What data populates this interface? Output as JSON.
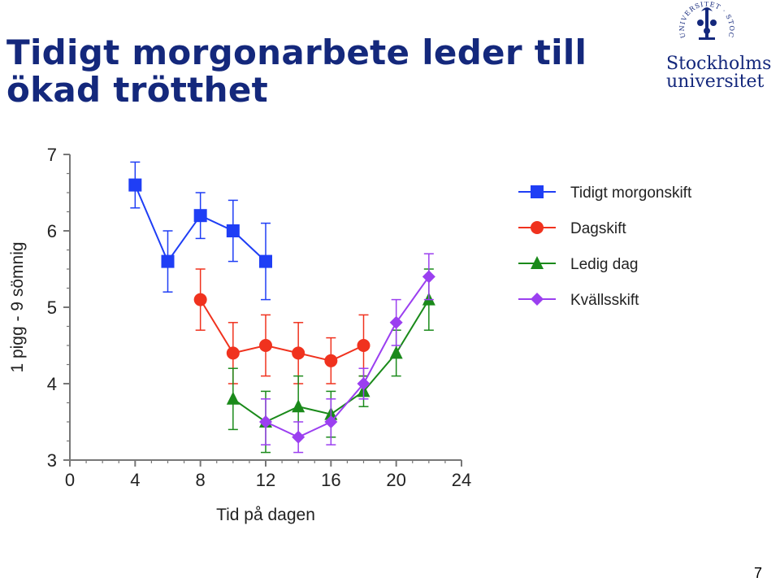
{
  "slide": {
    "title_line1": "Tidigt morgonarbete leder till",
    "title_line2": "ökad trötthet",
    "page_number": "7"
  },
  "logo": {
    "seal_text": "UNIVERSITET · STOCKHOLMS ·",
    "line1": "Stockholms",
    "line2": "universitet",
    "color": "#14287c"
  },
  "chart_data": {
    "type": "line",
    "xlabel": "Tid på dagen",
    "ylabel": "1 pigg - 9 sömnig",
    "xlim": [
      0,
      24
    ],
    "ylim": [
      3,
      7
    ],
    "xticks": [
      0,
      4,
      8,
      12,
      16,
      20,
      24
    ],
    "yticks": [
      3,
      4,
      5,
      6,
      7
    ],
    "legend_position": "right",
    "series": [
      {
        "name": "Tidigt morgonskift",
        "color": "#1f3ef5",
        "marker": "square",
        "x": [
          4,
          6,
          8,
          10,
          12
        ],
        "y": [
          6.6,
          5.6,
          6.2,
          6.0,
          5.6
        ],
        "err": [
          0.3,
          0.4,
          0.3,
          0.4,
          0.5
        ]
      },
      {
        "name": "Dagskift",
        "color": "#f0321e",
        "marker": "circle",
        "x": [
          8,
          10,
          12,
          14,
          16,
          18
        ],
        "y": [
          5.1,
          4.4,
          4.5,
          4.4,
          4.3,
          4.5
        ],
        "err": [
          0.4,
          0.4,
          0.4,
          0.4,
          0.3,
          0.4
        ]
      },
      {
        "name": "Ledig dag",
        "color": "#1a8a1a",
        "marker": "triangle",
        "x": [
          10,
          12,
          14,
          16,
          18,
          20,
          22
        ],
        "y": [
          3.8,
          3.5,
          3.7,
          3.6,
          3.9,
          4.4,
          5.1
        ],
        "err": [
          0.4,
          0.4,
          0.4,
          0.3,
          0.2,
          0.3,
          0.4
        ]
      },
      {
        "name": "Kvällsskift",
        "color": "#9b3ff0",
        "marker": "diamond",
        "x": [
          12,
          14,
          16,
          18,
          20,
          22
        ],
        "y": [
          3.5,
          3.3,
          3.5,
          4.0,
          4.8,
          5.4
        ],
        "err": [
          0.3,
          0.2,
          0.3,
          0.2,
          0.3,
          0.3
        ]
      }
    ]
  }
}
